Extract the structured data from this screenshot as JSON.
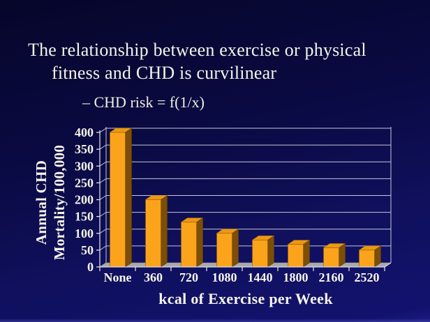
{
  "slide": {
    "title_line1": "The relationship between exercise or physical",
    "title_line2": "fitness and CHD is curvilinear",
    "bullet": "– CHD risk = f(1/x)"
  },
  "chart_data": {
    "type": "bar",
    "categories": [
      "None",
      "360",
      "720",
      "1080",
      "1440",
      "1800",
      "2160",
      "2520"
    ],
    "values": [
      400,
      200,
      133,
      100,
      80,
      67,
      57,
      50
    ],
    "title": "",
    "xlabel": "kcal of Exercise per Week",
    "ylabel": "Annual CHD Mortality/100,000",
    "ylabel_line1": "Annual CHD",
    "ylabel_line2": "Mortality/100,000",
    "ylim": [
      0,
      400
    ],
    "ytick_step": 50,
    "grid": true,
    "legend_position": "none",
    "style_3d": true,
    "colors": {
      "bar_front": "#FCA31C",
      "bar_top": "#ED9712",
      "bar_side": "#7C4E06",
      "floor": "#A9A9A9",
      "gridline": "#C7C7D8",
      "text": "#F6F4EA"
    }
  }
}
